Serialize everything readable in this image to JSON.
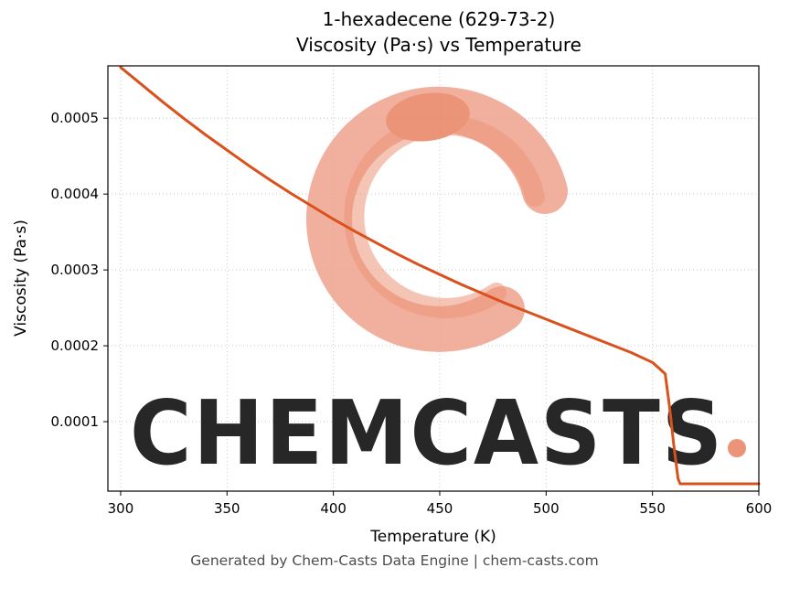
{
  "title_line1": "1-hexadecene (629-73-2)",
  "title_line2": "Viscosity (Pa·s) vs Temperature",
  "footer": "Generated by Chem-Casts Data Engine | chem-casts.com",
  "watermark": {
    "text": "CHEMCASTS",
    "logo_color": "#efa28c",
    "blob_color": "#e8815f",
    "text_color": "#f5c1ae"
  },
  "chart_data": {
    "type": "line",
    "title": "1-hexadecene (629-73-2) — Viscosity (Pa·s) vs Temperature",
    "xlabel": "Temperature (K)",
    "ylabel": "Viscosity (Pa·s)",
    "xlim": [
      294,
      600
    ],
    "ylim": [
      8.4e-06,
      0.000569
    ],
    "x_ticks": [
      300,
      350,
      400,
      450,
      500,
      550,
      600
    ],
    "y_ticks": [
      0.0001,
      0.0002,
      0.0003,
      0.0004,
      0.0005
    ],
    "grid": true,
    "legend": false,
    "line_color": "#d9511c",
    "line_width": 3,
    "series": [
      {
        "name": "viscosity",
        "x": [
          300,
          310,
          320,
          330,
          340,
          350,
          360,
          370,
          380,
          390,
          400,
          410,
          420,
          430,
          440,
          450,
          460,
          470,
          480,
          490,
          500,
          510,
          520,
          530,
          540,
          550,
          556,
          558,
          560,
          562,
          563,
          570,
          580,
          590,
          600
        ],
        "y": [
          0.000567,
          0.000544,
          0.000521,
          0.000499,
          0.000478,
          0.000458,
          0.000438,
          0.000419,
          0.000401,
          0.000384,
          0.000367,
          0.000351,
          0.000336,
          0.000321,
          0.000307,
          0.000294,
          0.000281,
          0.000269,
          0.000257,
          0.000246,
          0.000235,
          0.000224,
          0.000213,
          0.000202,
          0.000191,
          0.000178,
          0.000163,
          0.00012,
          7e-05,
          2.5e-05,
          1.8e-05,
          1.8e-05,
          1.8e-05,
          1.8e-05,
          1.8e-05
        ]
      }
    ]
  }
}
